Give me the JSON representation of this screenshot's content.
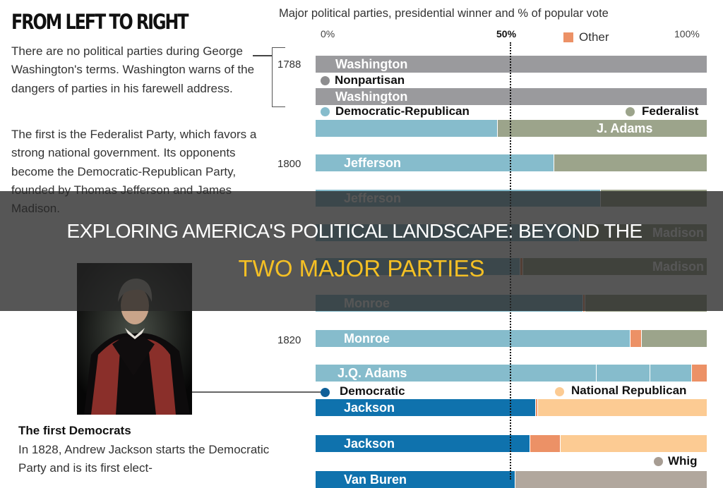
{
  "left": {
    "title": "FROM LEFT TO RIGHT",
    "paragraph1": "There are no political parties during George Washington's terms. Washington warns of the dangers of parties in his farewell address.",
    "paragraph2": "The first is the Federalist Party, which favors a strong national government. Its opponents become the Democratic-Republican Party, founded by Thomas Jefferson and James Madison.",
    "caption_heading": "The first Democrats",
    "caption_text": "In 1828, Andrew Jackson starts the Democratic Party and is its first elect-"
  },
  "overlay": {
    "line1": "EXPLORING AMERICA'S POLITICAL LANDSCAPE: BEYOND THE",
    "line2": "TWO MAJOR PARTIES",
    "line1_color": "#ffffff",
    "line2_color": "#f5c024"
  },
  "chart_data": {
    "type": "bar",
    "orientation": "horizontal-stacked",
    "title": "Major political parties, presidential winner and % of popular vote",
    "x_ticks": [
      "0%",
      "50%",
      "100%"
    ],
    "xlim": [
      0,
      100
    ],
    "reference_line": 50,
    "year_labels": [
      "1788",
      "1800",
      "1820"
    ],
    "colors": {
      "Nonpartisan": "#9a9a9d",
      "Democratic-Republican": "#86bccc",
      "Federalist": "#9ca48b",
      "Other": "#ec9166",
      "Democratic": "#0f72ad",
      "National Republican": "#fccb93",
      "Whig": "#b1a79d"
    },
    "legend": [
      "Other",
      "Nonpartisan",
      "Democratic-Republican",
      "Federalist",
      "Democratic",
      "National Republican",
      "Whig"
    ],
    "rows": [
      {
        "winner": "Washington",
        "segments": [
          {
            "party": "Nonpartisan",
            "value": 100
          }
        ]
      },
      {
        "winner": "Washington",
        "segments": [
          {
            "party": "Nonpartisan",
            "value": 100
          }
        ]
      },
      {
        "winner": "J. Adams",
        "segments": [
          {
            "party": "Democratic-Republican",
            "value": 46.4
          },
          {
            "party": "Federalist",
            "value": 53.6
          }
        ]
      },
      {
        "winner": "Jefferson",
        "segments": [
          {
            "party": "Democratic-Republican",
            "value": 60.8
          },
          {
            "party": "Federalist",
            "value": 39.2
          }
        ]
      },
      {
        "winner": "Jefferson",
        "segments": [
          {
            "party": "Democratic-Republican",
            "value": 72.7
          },
          {
            "party": "Federalist",
            "value": 27.3
          }
        ]
      },
      {
        "winner": "Madison",
        "segments": [
          {
            "party": "Democratic-Republican",
            "value": 67.3
          },
          {
            "party": "Federalist",
            "value": 32.7
          }
        ]
      },
      {
        "winner": "Madison",
        "segments": [
          {
            "party": "Democratic-Republican",
            "value": 52.2
          },
          {
            "party": "Other",
            "value": 0.6
          },
          {
            "party": "Federalist",
            "value": 47.2
          }
        ]
      },
      {
        "winner": "Monroe",
        "segments": [
          {
            "party": "Democratic-Republican",
            "value": 68.2
          },
          {
            "party": "Other",
            "value": 0.5
          },
          {
            "party": "Federalist",
            "value": 31.3
          }
        ]
      },
      {
        "winner": "Monroe",
        "segments": [
          {
            "party": "Democratic-Republican",
            "value": 80.3
          },
          {
            "party": "Other",
            "value": 2.9
          },
          {
            "party": "Federalist",
            "value": 16.8
          }
        ]
      },
      {
        "winner": "J.Q. Adams",
        "segments": [
          {
            "party": "Democratic-Republican",
            "value": 71.7
          },
          {
            "party": "Democratic-Republican",
            "value": 13.7
          },
          {
            "party": "Democratic-Republican",
            "value": 10.6
          },
          {
            "party": "Other",
            "value": 4.0
          }
        ]
      },
      {
        "winner": "Jackson",
        "segments": [
          {
            "party": "Democratic",
            "value": 56.2
          },
          {
            "party": "Other",
            "value": 0.5
          },
          {
            "party": "National Republican",
            "value": 43.3
          }
        ]
      },
      {
        "winner": "Jackson",
        "segments": [
          {
            "party": "Democratic",
            "value": 54.7
          },
          {
            "party": "Other",
            "value": 7.8
          },
          {
            "party": "National Republican",
            "value": 37.5
          }
        ]
      },
      {
        "winner": "Van Buren",
        "segments": [
          {
            "party": "Democratic",
            "value": 50.9
          },
          {
            "party": "Whig",
            "value": 49.1
          }
        ]
      }
    ]
  }
}
